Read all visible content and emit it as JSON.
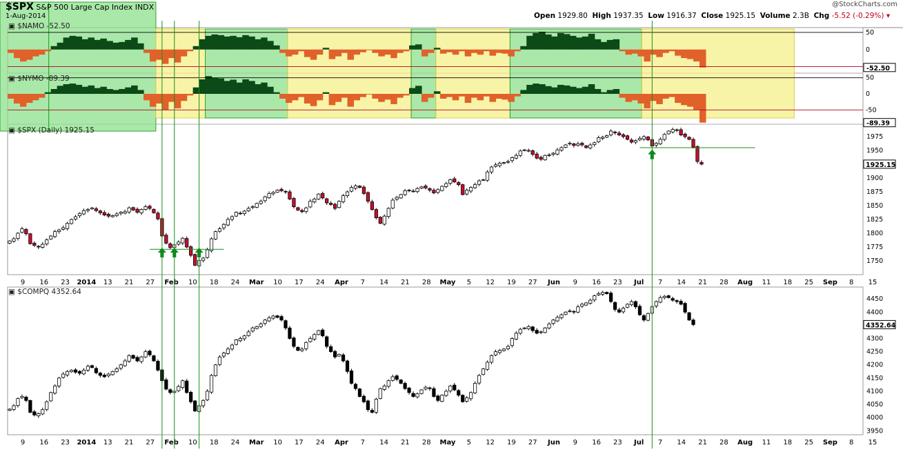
{
  "header": {
    "symbol": "$SPX",
    "title": "S&P 500 Large Cap Index",
    "exchange": "INDX",
    "date": "1-Aug-2014",
    "watermark": "@StockCharts.com",
    "ohlc": {
      "open_label": "Open",
      "open": "1929.80",
      "high_label": "High",
      "high": "1937.35",
      "low_label": "Low",
      "low": "1916.37",
      "close_label": "Close",
      "close": "1925.15",
      "volume_label": "Volume",
      "volume": "2.3B",
      "chg_label": "Chg",
      "chg": "-5.52 (-0.29%)"
    }
  },
  "panels": {
    "namo": {
      "label": "$NAMO -52.50",
      "last": "-52.50"
    },
    "nymo": {
      "label": "$NYMO -89.39",
      "last": "-89.39"
    },
    "spx": {
      "label": "$SPX (Daily) 1925.15",
      "last": "1925.15"
    },
    "compq": {
      "label": "$COMPQ 4352.64",
      "last": "4352.64"
    }
  },
  "colors": {
    "up_candle": "#ffffff",
    "down_candle": "#c8102e",
    "positive_area": "#0c4a17",
    "negative_area": "#e0622a",
    "green_zone": "#8ee08e",
    "yellow_zone": "#f5f08a",
    "marker": "#0a8a1a",
    "guide_line": "#1a8c1a"
  },
  "chart_data": [
    {
      "type": "area",
      "name": "$NAMO",
      "ylim": [
        -65,
        60
      ],
      "yticks": [
        50,
        0,
        -50
      ],
      "reference_lines": [
        50,
        -50
      ],
      "last_value": -52.5,
      "values": [
        -10,
        -25,
        -35,
        -30,
        -20,
        -15,
        -5,
        10,
        20,
        35,
        40,
        38,
        30,
        35,
        28,
        32,
        25,
        20,
        22,
        28,
        35,
        18,
        -10,
        -35,
        -30,
        -42,
        -25,
        -38,
        -20,
        -5,
        10,
        30,
        40,
        44,
        42,
        38,
        40,
        36,
        42,
        38,
        30,
        35,
        25,
        12,
        -10,
        -20,
        -15,
        -5,
        -22,
        -30,
        -15,
        5,
        -28,
        -20,
        -10,
        -30,
        -15,
        -8,
        -2,
        -10,
        -20,
        -15,
        -25,
        -10,
        -5,
        12,
        15,
        -20,
        -10,
        5,
        -12,
        -8,
        -15,
        -5,
        -20,
        -10,
        -15,
        -5,
        -18,
        -10,
        -12,
        -20,
        -5,
        10,
        40,
        48,
        52,
        44,
        38,
        48,
        45,
        40,
        35,
        38,
        46,
        30,
        22,
        28,
        30,
        -5,
        -15,
        -12,
        -20,
        -35,
        -15,
        -22,
        -10,
        -5,
        -18,
        -25,
        -28,
        -35,
        -52.5
      ]
    },
    {
      "type": "area",
      "name": "$NYMO",
      "ylim": [
        -90,
        60
      ],
      "yticks": [
        50,
        0,
        -50
      ],
      "reference_lines": [
        50,
        -50
      ],
      "last_value": -89.39,
      "values": [
        -15,
        -30,
        -40,
        -28,
        -20,
        -12,
        5,
        15,
        25,
        30,
        32,
        28,
        22,
        26,
        18,
        22,
        15,
        12,
        15,
        20,
        26,
        12,
        -20,
        -40,
        -30,
        -50,
        -25,
        -45,
        -22,
        -5,
        20,
        45,
        55,
        50,
        48,
        40,
        44,
        35,
        45,
        40,
        30,
        35,
        22,
        5,
        -15,
        -28,
        -20,
        -10,
        -30,
        -38,
        -20,
        5,
        -35,
        -25,
        -12,
        -40,
        -20,
        -10,
        -2,
        -15,
        -25,
        -18,
        -32,
        -12,
        -5,
        18,
        25,
        -25,
        -12,
        8,
        -15,
        -10,
        -20,
        -8,
        -28,
        -12,
        -20,
        -8,
        -25,
        -15,
        -18,
        -25,
        -8,
        12,
        28,
        32,
        30,
        24,
        20,
        28,
        26,
        22,
        18,
        22,
        30,
        15,
        5,
        12,
        15,
        -12,
        -25,
        -20,
        -30,
        -45,
        -22,
        -32,
        -15,
        -10,
        -28,
        -35,
        -40,
        -50,
        -89.39
      ]
    },
    {
      "type": "candlestick",
      "name": "$SPX (Daily)",
      "ylim": [
        1725,
        1995
      ],
      "yticks": [
        1750,
        1775,
        1800,
        1825,
        1850,
        1875,
        1900,
        1925,
        1950,
        1975
      ],
      "xlabels": [
        "9",
        "16",
        "23",
        "2014",
        "13",
        "21",
        "27",
        "Feb",
        "10",
        "18",
        "24",
        "Mar",
        "10",
        "17",
        "24",
        "Apr",
        "7",
        "14",
        "21",
        "28",
        "May",
        "5",
        "12",
        "19",
        "27",
        "Jun",
        "9",
        "16",
        "23",
        "Jul",
        "7",
        "14",
        "21",
        "28",
        "Aug",
        "11",
        "18",
        "25",
        "Sep",
        "8",
        "15"
      ],
      "annotations": [
        {
          "type": "up_arrow",
          "date_index": 37,
          "label": ""
        },
        {
          "type": "up_arrow",
          "date_index": 40,
          "label": ""
        },
        {
          "type": "up_arrow",
          "date_index": 46,
          "label": ""
        },
        {
          "type": "up_arrow",
          "date_index": 156,
          "label": ""
        },
        {
          "type": "horizontal_line",
          "value": 1771
        },
        {
          "type": "horizontal_line",
          "value": 1955
        }
      ],
      "close": [
        1786,
        1790,
        1800,
        1808,
        1799,
        1781,
        1778,
        1775,
        1780,
        1788,
        1795,
        1803,
        1806,
        1810,
        1818,
        1825,
        1830,
        1836,
        1841,
        1843,
        1846,
        1841,
        1837,
        1833,
        1831,
        1832,
        1835,
        1838,
        1839,
        1846,
        1842,
        1838,
        1843,
        1848,
        1845,
        1837,
        1826,
        1795,
        1782,
        1774,
        1779,
        1784,
        1791,
        1775,
        1760,
        1742,
        1751,
        1755,
        1770,
        1790,
        1803,
        1808,
        1816,
        1825,
        1830,
        1838,
        1836,
        1840,
        1845,
        1848,
        1854,
        1858,
        1866,
        1872,
        1874,
        1878,
        1877,
        1875,
        1862,
        1848,
        1842,
        1839,
        1846,
        1858,
        1862,
        1871,
        1864,
        1855,
        1852,
        1845,
        1858,
        1868,
        1875,
        1883,
        1886,
        1883,
        1872,
        1858,
        1843,
        1828,
        1818,
        1831,
        1845,
        1860,
        1865,
        1870,
        1877,
        1878,
        1876,
        1881,
        1884,
        1882,
        1878,
        1873,
        1879,
        1885,
        1890,
        1897,
        1893,
        1888,
        1870,
        1878,
        1883,
        1888,
        1895,
        1897,
        1911,
        1920,
        1924,
        1927,
        1928,
        1930,
        1937,
        1941,
        1949,
        1951,
        1950,
        1943,
        1936,
        1934,
        1941,
        1942,
        1945,
        1951,
        1955,
        1960,
        1963,
        1959,
        1962,
        1960,
        1955,
        1960,
        1964,
        1973,
        1974,
        1977,
        1985,
        1982,
        1978,
        1975,
        1970,
        1965,
        1968,
        1972,
        1975,
        1969,
        1958,
        1963,
        1970,
        1979,
        1985,
        1988,
        1987,
        1978,
        1975,
        1970,
        1956,
        1930,
        1925.15
      ]
    },
    {
      "type": "candlestick",
      "name": "$COMPQ",
      "ylim": [
        3935,
        4495
      ],
      "yticks": [
        3950,
        4000,
        4050,
        4100,
        4150,
        4200,
        4250,
        4300,
        4350,
        4400,
        4450
      ],
      "xlabels": [
        "9",
        "16",
        "23",
        "2014",
        "13",
        "21",
        "27",
        "Feb",
        "10",
        "18",
        "24",
        "Mar",
        "10",
        "17",
        "24",
        "Apr",
        "7",
        "14",
        "21",
        "28",
        "May",
        "5",
        "12",
        "19",
        "27",
        "Jun",
        "9",
        "16",
        "23",
        "Jul",
        "7",
        "14",
        "21",
        "28",
        "Aug",
        "11",
        "18",
        "25",
        "Sep",
        "8",
        "15"
      ],
      "close": [
        4032,
        4045,
        4072,
        4080,
        4065,
        4020,
        4010,
        4015,
        4030,
        4060,
        4095,
        4120,
        4150,
        4165,
        4175,
        4180,
        4172,
        4168,
        4180,
        4195,
        4190,
        4170,
        4160,
        4155,
        4165,
        4175,
        4185,
        4200,
        4215,
        4235,
        4225,
        4215,
        4230,
        4250,
        4238,
        4215,
        4180,
        4140,
        4108,
        4095,
        4100,
        4118,
        4140,
        4095,
        4060,
        4025,
        4045,
        4065,
        4100,
        4160,
        4200,
        4230,
        4245,
        4260,
        4275,
        4295,
        4300,
        4310,
        4325,
        4340,
        4345,
        4355,
        4370,
        4378,
        4385,
        4380,
        4370,
        4340,
        4300,
        4270,
        4255,
        4260,
        4285,
        4300,
        4315,
        4330,
        4310,
        4270,
        4250,
        4230,
        4240,
        4215,
        4175,
        4130,
        4110,
        4080,
        4060,
        4030,
        4020,
        4070,
        4110,
        4120,
        4140,
        4155,
        4145,
        4130,
        4110,
        4095,
        4080,
        4090,
        4105,
        4115,
        4110,
        4080,
        4065,
        4085,
        4100,
        4120,
        4105,
        4085,
        4060,
        4075,
        4095,
        4130,
        4160,
        4185,
        4210,
        4235,
        4250,
        4255,
        4260,
        4270,
        4300,
        4320,
        4335,
        4340,
        4345,
        4330,
        4320,
        4325,
        4340,
        4355,
        4370,
        4380,
        4390,
        4400,
        4405,
        4400,
        4420,
        4430,
        4435,
        4445,
        4462,
        4470,
        4475,
        4470,
        4440,
        4410,
        4400,
        4415,
        4430,
        4440,
        4420,
        4390,
        4370,
        4395,
        4420,
        4440,
        4455,
        4460,
        4455,
        4445,
        4440,
        4430,
        4400,
        4370,
        4352.64
      ]
    }
  ]
}
